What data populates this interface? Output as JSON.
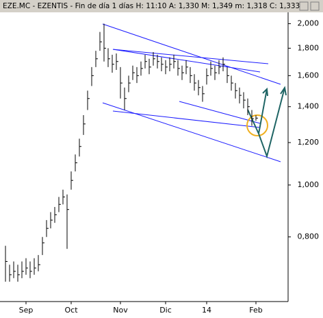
{
  "chart_data": {
    "type": "ohlc",
    "title": "EZE.MC - EZENTIS - Fin de día 1 días H: 11:10 A: 1,330 M: 1,349 m: 1,318 C: 1,333",
    "categories": [
      null,
      null,
      null,
      null,
      null,
      "Sep",
      null,
      null,
      null,
      null,
      null,
      null,
      null,
      null,
      null,
      null,
      "Oct",
      null,
      null,
      null,
      null,
      null,
      null,
      null,
      null,
      null,
      null,
      null,
      "Nov",
      null,
      null,
      null,
      null,
      null,
      null,
      null,
      null,
      null,
      null,
      "Dic",
      null,
      null,
      null,
      null,
      null,
      null,
      null,
      null,
      null,
      "14",
      null,
      null,
      null,
      null,
      null,
      null,
      null,
      null,
      null,
      null,
      null,
      "Feb"
    ],
    "high": [
      0.77,
      0.71,
      0.72,
      0.71,
      0.72,
      0.73,
      0.72,
      0.73,
      0.74,
      0.8,
      0.86,
      0.89,
      0.91,
      0.95,
      0.98,
      0.96,
      1.06,
      1.14,
      1.22,
      1.35,
      1.5,
      1.66,
      1.78,
      1.93,
      2.0,
      1.8,
      1.75,
      1.76,
      1.66,
      1.52,
      1.6,
      1.67,
      1.66,
      1.7,
      1.75,
      1.72,
      1.77,
      1.75,
      1.73,
      1.71,
      1.73,
      1.75,
      1.71,
      1.67,
      1.71,
      1.66,
      1.61,
      1.57,
      1.53,
      1.65,
      1.7,
      1.67,
      1.71,
      1.73,
      1.66,
      1.6,
      1.55,
      1.52,
      1.49,
      1.45,
      1.38,
      1.349
    ],
    "low": [
      0.66,
      0.66,
      0.67,
      0.66,
      0.67,
      0.68,
      0.67,
      0.68,
      0.69,
      0.74,
      0.8,
      0.83,
      0.85,
      0.89,
      0.92,
      0.76,
      0.98,
      1.06,
      1.13,
      1.24,
      1.38,
      1.53,
      1.66,
      1.78,
      1.7,
      1.66,
      1.62,
      1.64,
      1.45,
      1.38,
      1.49,
      1.57,
      1.55,
      1.6,
      1.65,
      1.61,
      1.67,
      1.65,
      1.63,
      1.61,
      1.63,
      1.65,
      1.6,
      1.57,
      1.61,
      1.55,
      1.5,
      1.47,
      1.43,
      1.54,
      1.6,
      1.57,
      1.61,
      1.63,
      1.55,
      1.5,
      1.45,
      1.42,
      1.39,
      1.35,
      1.29,
      1.318
    ],
    "close": [
      0.72,
      0.68,
      0.69,
      0.68,
      0.69,
      0.7,
      0.69,
      0.7,
      0.71,
      0.78,
      0.83,
      0.86,
      0.88,
      0.92,
      0.95,
      0.9,
      1.02,
      1.1,
      1.18,
      1.3,
      1.45,
      1.6,
      1.72,
      1.85,
      1.8,
      1.72,
      1.68,
      1.7,
      1.55,
      1.45,
      1.55,
      1.62,
      1.6,
      1.65,
      1.7,
      1.66,
      1.72,
      1.7,
      1.68,
      1.66,
      1.68,
      1.7,
      1.65,
      1.62,
      1.66,
      1.6,
      1.55,
      1.52,
      1.48,
      1.6,
      1.65,
      1.62,
      1.66,
      1.68,
      1.6,
      1.55,
      1.5,
      1.47,
      1.44,
      1.4,
      1.33,
      1.333
    ],
    "log_scale": true,
    "ylim": [
      0.606,
      2.1
    ],
    "yticks": [
      {
        "value": 0.8,
        "label": "0,800"
      },
      {
        "value": 1.0,
        "label": "1,000"
      },
      {
        "value": 1.2,
        "label": "1,200"
      },
      {
        "value": 1.4,
        "label": "1,400"
      },
      {
        "value": 1.6,
        "label": "1,600"
      },
      {
        "value": 1.8,
        "label": "1,800"
      },
      {
        "value": 2.0,
        "label": "2,000"
      }
    ],
    "color": "#000000"
  }
}
